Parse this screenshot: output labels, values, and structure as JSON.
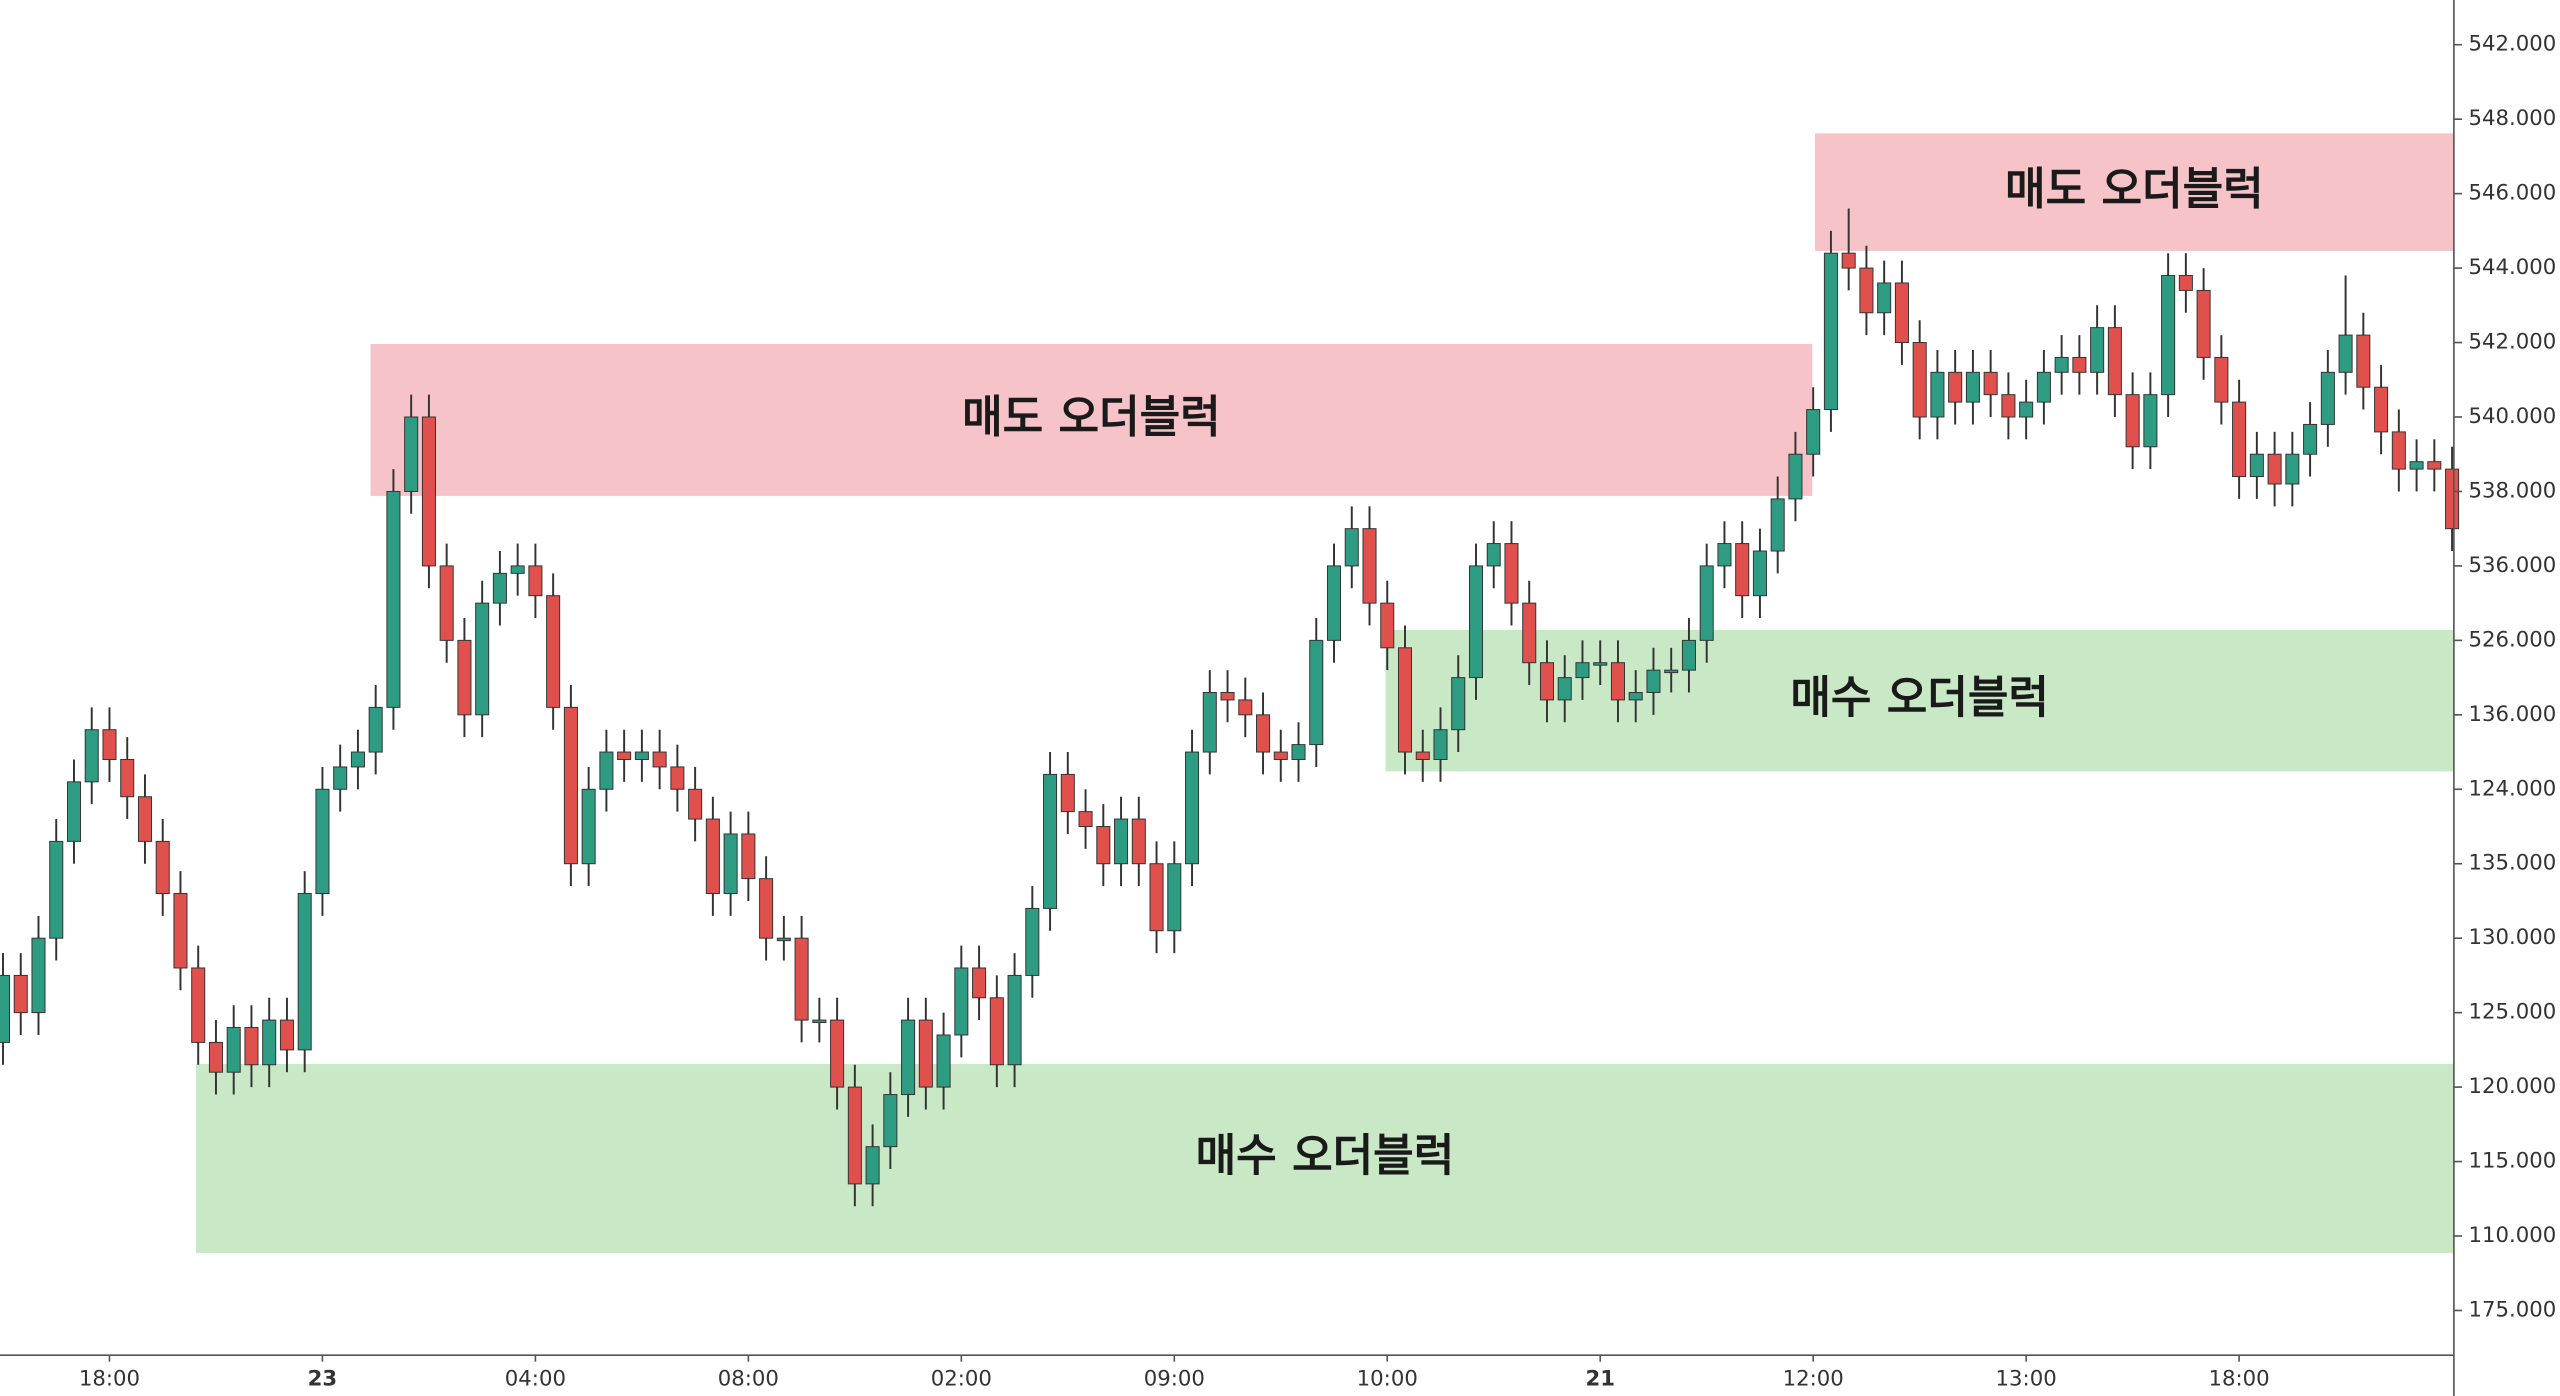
{
  "chart_data": {
    "type": "candlestick",
    "up_color": "#2e9c82",
    "down_color": "#e0504c",
    "categories": [
      null,
      null,
      null,
      null,
      null,
      null,
      "18:00",
      null,
      null,
      null,
      null,
      null,
      null,
      null,
      null,
      null,
      null,
      null,
      "23",
      null,
      null,
      null,
      null,
      null,
      null,
      null,
      null,
      null,
      null,
      null,
      "04:00",
      null,
      null,
      null,
      null,
      null,
      null,
      null,
      null,
      null,
      null,
      null,
      "08:00",
      null,
      null,
      null,
      null,
      null,
      null,
      null,
      null,
      null,
      null,
      null,
      "02:00",
      null,
      null,
      null,
      null,
      null,
      null,
      null,
      null,
      null,
      null,
      null,
      "09:00",
      null,
      null,
      null,
      null,
      null,
      null,
      null,
      null,
      null,
      null,
      null,
      "10:00",
      null,
      null,
      null,
      null,
      null,
      null,
      null,
      null,
      null,
      null,
      null,
      "21",
      null,
      null,
      null,
      null,
      null,
      null,
      null,
      null,
      null,
      null,
      null,
      "12:00",
      null,
      null,
      null,
      null,
      null,
      null,
      null,
      null,
      null,
      null,
      null,
      "13:00",
      null,
      null,
      null,
      null,
      null,
      null,
      null,
      null,
      null,
      null,
      null,
      "18:00",
      null,
      null,
      null,
      null,
      null,
      null,
      null,
      null,
      null,
      null,
      null,
      null
    ],
    "open": [
      3.6,
      4.5,
      4.0,
      5.0,
      6.3,
      7.1,
      7.8,
      7.4,
      6.9,
      6.3,
      5.6,
      4.6,
      3.6,
      3.2,
      3.8,
      3.3,
      3.9,
      3.5,
      5.6,
      7.0,
      7.3,
      7.5,
      8.1,
      11.0,
      12.0,
      10.0,
      9.0,
      8.0,
      9.5,
      9.9,
      10.0,
      9.6,
      8.1,
      6.0,
      7.0,
      7.5,
      7.4,
      7.5,
      7.3,
      7.0,
      6.6,
      5.6,
      6.4,
      5.8,
      5.0,
      5.0,
      3.9,
      3.9,
      3.0,
      1.7,
      2.2,
      2.9,
      3.9,
      3.0,
      3.7,
      4.6,
      4.2,
      3.3,
      4.5,
      5.4,
      7.2,
      6.7,
      6.5,
      6.0,
      6.6,
      6.0,
      5.1,
      6.0,
      7.5,
      8.3,
      8.2,
      8.0,
      7.5,
      7.4,
      7.6,
      9.0,
      10.0,
      10.5,
      9.5,
      8.9,
      7.5,
      7.4,
      7.8,
      8.5,
      10.0,
      10.3,
      9.5,
      8.7,
      8.2,
      8.5,
      8.7,
      8.7,
      8.2,
      8.3,
      8.6,
      8.6,
      9.0,
      10.0,
      10.3,
      9.6,
      10.2,
      10.9,
      11.5,
      12.1,
      14.2,
      14.0,
      13.4,
      13.8,
      13.0,
      12.0,
      12.6,
      12.2,
      12.6,
      12.3,
      12.0,
      12.2,
      12.6,
      12.8,
      12.6,
      13.2,
      12.3,
      11.6,
      12.3,
      13.9,
      13.7,
      12.8,
      12.2,
      11.2,
      11.5,
      11.1,
      11.5,
      11.9,
      12.6,
      13.1,
      12.4,
      11.8,
      11.3,
      11.4,
      11.3
    ],
    "high": [
      4.8,
      4.8,
      5.3,
      6.6,
      7.4,
      8.1,
      8.1,
      7.7,
      7.2,
      6.6,
      5.9,
      4.9,
      3.9,
      4.1,
      4.1,
      4.2,
      4.2,
      5.9,
      7.3,
      7.6,
      7.8,
      8.4,
      11.3,
      12.3,
      12.3,
      10.3,
      9.3,
      9.8,
      10.2,
      10.3,
      10.3,
      9.9,
      8.4,
      7.3,
      7.8,
      7.8,
      7.8,
      7.8,
      7.6,
      7.3,
      6.9,
      6.7,
      6.7,
      6.1,
      5.3,
      5.3,
      4.2,
      4.2,
      3.3,
      2.5,
      3.2,
      4.2,
      4.2,
      4.0,
      4.9,
      4.9,
      4.5,
      4.8,
      5.7,
      7.5,
      7.5,
      7.0,
      6.8,
      6.9,
      6.9,
      6.3,
      6.3,
      7.8,
      8.6,
      8.6,
      8.5,
      8.3,
      7.8,
      7.9,
      9.3,
      10.3,
      10.8,
      10.8,
      9.8,
      9.2,
      7.8,
      8.1,
      8.8,
      10.3,
      10.6,
      10.6,
      9.8,
      9.0,
      8.8,
      9.0,
      9.0,
      9.0,
      8.6,
      8.9,
      8.9,
      9.3,
      10.3,
      10.6,
      10.6,
      10.5,
      11.2,
      11.8,
      12.4,
      14.5,
      14.8,
      14.3,
      14.1,
      14.1,
      13.3,
      12.9,
      12.9,
      12.9,
      12.9,
      12.6,
      12.5,
      12.9,
      13.1,
      13.1,
      13.5,
      13.5,
      12.6,
      12.6,
      14.2,
      14.2,
      14.0,
      13.1,
      12.5,
      11.8,
      11.8,
      11.8,
      12.2,
      12.9,
      13.9,
      13.4,
      12.7,
      12.1,
      11.7,
      11.7,
      11.6
    ],
    "low": [
      3.3,
      3.7,
      3.7,
      4.7,
      6.0,
      6.8,
      7.1,
      6.6,
      6.0,
      5.3,
      4.3,
      3.3,
      2.9,
      2.9,
      3.0,
      3.0,
      3.2,
      3.2,
      5.3,
      6.7,
      7.0,
      7.2,
      7.8,
      10.7,
      9.7,
      8.7,
      7.7,
      7.7,
      9.2,
      9.6,
      9.3,
      7.8,
      5.7,
      5.7,
      6.7,
      7.1,
      7.1,
      7.0,
      6.7,
      6.3,
      5.3,
      5.3,
      5.5,
      4.7,
      4.7,
      3.6,
      3.6,
      2.7,
      1.4,
      1.4,
      1.9,
      2.6,
      2.7,
      2.7,
      3.4,
      3.9,
      3.0,
      3.0,
      4.2,
      5.1,
      6.4,
      6.2,
      5.7,
      5.7,
      5.7,
      4.8,
      4.8,
      5.7,
      7.2,
      7.9,
      7.7,
      7.2,
      7.1,
      7.1,
      7.3,
      8.7,
      9.7,
      9.2,
      8.6,
      7.2,
      7.1,
      7.1,
      7.5,
      8.2,
      9.7,
      9.2,
      8.4,
      7.9,
      7.9,
      8.2,
      8.4,
      7.9,
      7.9,
      8.0,
      8.3,
      8.3,
      8.7,
      9.7,
      9.3,
      9.3,
      9.9,
      10.6,
      11.2,
      11.8,
      13.7,
      13.1,
      13.1,
      12.7,
      11.7,
      11.7,
      11.9,
      11.9,
      12.0,
      11.7,
      11.7,
      11.9,
      12.3,
      12.3,
      12.3,
      12.0,
      11.3,
      11.3,
      12.0,
      13.4,
      12.5,
      11.9,
      10.9,
      10.9,
      10.8,
      10.8,
      11.2,
      11.6,
      12.3,
      12.1,
      11.5,
      11.0,
      11.0,
      11.0,
      10.2
    ],
    "close": [
      4.5,
      4.0,
      5.0,
      6.3,
      7.1,
      7.8,
      7.4,
      6.9,
      6.3,
      5.6,
      4.6,
      3.6,
      3.2,
      3.8,
      3.3,
      3.9,
      3.5,
      5.6,
      7.0,
      7.3,
      7.5,
      8.1,
      11.0,
      12.0,
      10.0,
      9.0,
      8.0,
      9.5,
      9.9,
      10.0,
      9.6,
      8.1,
      6.0,
      7.0,
      7.5,
      7.4,
      7.5,
      7.3,
      7.0,
      6.6,
      5.6,
      6.4,
      5.8,
      5.0,
      5.0,
      3.9,
      3.9,
      3.0,
      1.7,
      2.2,
      2.9,
      3.9,
      3.0,
      3.7,
      4.6,
      4.2,
      3.3,
      4.5,
      5.4,
      7.2,
      6.7,
      6.5,
      6.0,
      6.6,
      6.0,
      5.1,
      6.0,
      7.5,
      8.3,
      8.2,
      8.0,
      7.5,
      7.4,
      7.6,
      9.0,
      10.0,
      10.5,
      9.5,
      8.9,
      7.5,
      7.4,
      7.8,
      8.5,
      10.0,
      10.3,
      9.5,
      8.7,
      8.2,
      8.5,
      8.7,
      8.7,
      8.2,
      8.3,
      8.6,
      8.6,
      9.0,
      10.0,
      10.3,
      9.6,
      10.2,
      10.9,
      11.5,
      12.1,
      14.2,
      14.0,
      13.4,
      13.8,
      13.0,
      12.0,
      12.6,
      12.2,
      12.6,
      12.3,
      12.0,
      12.2,
      12.6,
      12.8,
      12.6,
      13.2,
      12.3,
      11.6,
      12.3,
      13.9,
      13.7,
      12.8,
      12.2,
      11.2,
      11.5,
      11.1,
      11.5,
      11.9,
      12.6,
      13.1,
      12.4,
      11.8,
      11.3,
      11.4,
      11.3,
      10.5
    ],
    "ylim": [
      -0.6,
      17.6
    ],
    "yticks": [
      {
        "value": 17,
        "label": "542.000"
      },
      {
        "value": 16,
        "label": "548.000"
      },
      {
        "value": 15,
        "label": "546.000"
      },
      {
        "value": 14,
        "label": "544.000"
      },
      {
        "value": 13,
        "label": "542.000"
      },
      {
        "value": 12,
        "label": "540.000"
      },
      {
        "value": 11,
        "label": "538.000"
      },
      {
        "value": 10,
        "label": "536.000"
      },
      {
        "value": 9,
        "label": "526.000"
      },
      {
        "value": 8,
        "label": "136.000"
      },
      {
        "value": 7,
        "label": "124.000"
      },
      {
        "value": 6,
        "label": "135.000"
      },
      {
        "value": 5,
        "label": "130.000"
      },
      {
        "value": 4,
        "label": "125.000"
      },
      {
        "value": 3,
        "label": "120.000"
      },
      {
        "value": 2,
        "label": "115.000"
      },
      {
        "value": 1,
        "label": "110.000"
      },
      {
        "value": 0,
        "label": "175.000"
      }
    ],
    "zones": [
      {
        "label": "매도 오더블럭",
        "color": "#f6c3c8",
        "x": [
          20.71,
          101.95
        ],
        "y": [
          10.94,
          12.98
        ]
      },
      {
        "label": "매도 오더블럭",
        "color": "#f6c3c8",
        "x": [
          102.1,
          138.1
        ],
        "y": [
          14.23,
          15.81
        ]
      },
      {
        "label": "매수 오더블럭",
        "color": "#c9e9c6",
        "x": [
          77.9,
          138.1
        ],
        "y": [
          7.24,
          9.14
        ]
      },
      {
        "label": "매수 오더블럭",
        "color": "#c9e9c6",
        "x": [
          10.88,
          138.1
        ],
        "y": [
          0.77,
          3.31
        ]
      }
    ]
  }
}
